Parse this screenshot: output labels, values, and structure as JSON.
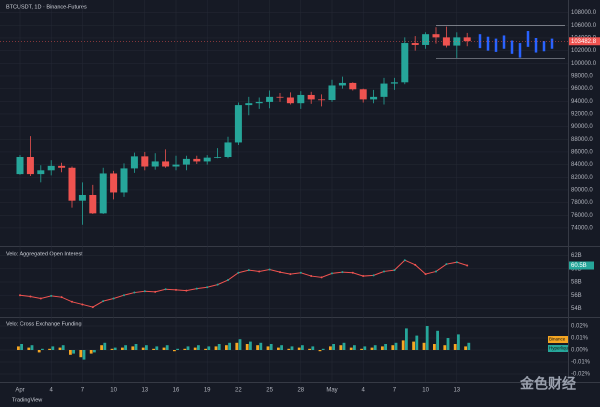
{
  "chart_data": [
    {
      "type": "candlestick",
      "title": "BTCUSDT, 1D · Binance-Futures",
      "categories": [
        "Apr",
        null,
        null,
        "4",
        null,
        null,
        "7",
        null,
        null,
        "10",
        null,
        null,
        "13",
        null,
        null,
        "16",
        null,
        null,
        "19",
        null,
        null,
        "22",
        null,
        null,
        "25",
        null,
        null,
        "28",
        null,
        null,
        "May",
        null,
        null,
        "4",
        null,
        null,
        "7",
        null,
        null,
        "10",
        null,
        null,
        "13",
        null
      ],
      "open": [
        82500,
        85200,
        82500,
        83100,
        83800,
        83500,
        78300,
        79200,
        76300,
        82600,
        79600,
        83400,
        85300,
        83700,
        84500,
        83700,
        84000,
        84900,
        84500,
        85100,
        85200,
        87500,
        93400,
        93700,
        93900,
        94700,
        94600,
        93700,
        95000,
        94300,
        94200,
        96500,
        96900,
        95900,
        94300,
        94700,
        96800,
        97000,
        103200,
        102900,
        104600,
        104100,
        102800,
        104100
      ],
      "high": [
        85500,
        88500,
        83900,
        84700,
        84300,
        83700,
        81200,
        80800,
        83500,
        83000,
        84200,
        85900,
        86000,
        85800,
        86400,
        85400,
        85400,
        85400,
        85500,
        86600,
        88400,
        93800,
        94700,
        94600,
        95700,
        95300,
        95400,
        95600,
        95500,
        95100,
        97400,
        97900,
        97000,
        96000,
        95800,
        97700,
        97700,
        104100,
        104300,
        104900,
        105700,
        105800,
        104900,
        104800
      ],
      "low": [
        82400,
        82200,
        81200,
        82300,
        82800,
        77200,
        74500,
        76200,
        76200,
        78500,
        78900,
        82700,
        83100,
        83200,
        83500,
        83100,
        83100,
        84100,
        84000,
        85000,
        85000,
        87100,
        91800,
        92800,
        92900,
        93900,
        93500,
        92800,
        93600,
        93200,
        93900,
        96000,
        95700,
        93800,
        93700,
        93500,
        95800,
        96700,
        102000,
        102300,
        103100,
        102500,
        100800,
        102700
      ],
      "close": [
        85200,
        82500,
        83100,
        83800,
        83500,
        78300,
        79200,
        76300,
        82600,
        79600,
        83400,
        85300,
        83700,
        84500,
        83700,
        84000,
        84900,
        84500,
        85100,
        85200,
        87500,
        93400,
        93700,
        93900,
        94700,
        94600,
        93700,
        95000,
        94300,
        94200,
        96500,
        96900,
        95900,
        94300,
        94700,
        96800,
        97000,
        103200,
        102900,
        104600,
        104100,
        102800,
        104100,
        103500
      ],
      "up_color": "#26a69a",
      "down_color": "#ef5350",
      "projection": {
        "color": "#2962ff",
        "high": [
          104600,
          104200,
          103900,
          104400,
          103600,
          103200,
          105100,
          104000,
          103500,
          103900
        ],
        "low": [
          102400,
          102000,
          101800,
          102300,
          101500,
          100900,
          102600,
          101700,
          101900,
          102300
        ]
      },
      "range_lines": [
        100800,
        106000
      ],
      "last_price": {
        "value": 103482.8,
        "label": "103482.8"
      },
      "ylim": [
        71300,
        110000
      ],
      "yticks": [
        {
          "value": 74000,
          "label": "74000.0"
        },
        {
          "value": 76000,
          "label": "76000.0"
        },
        {
          "value": 78000,
          "label": "78000.0"
        },
        {
          "value": 80000,
          "label": "80000.0"
        },
        {
          "value": 82000,
          "label": "82000.0"
        },
        {
          "value": 84000,
          "label": "84000.0"
        },
        {
          "value": 86000,
          "label": "86000.0"
        },
        {
          "value": 88000,
          "label": "88000.0"
        },
        {
          "value": 90000,
          "label": "90000.0"
        },
        {
          "value": 92000,
          "label": "92000.0"
        },
        {
          "value": 94000,
          "label": "94000.0"
        },
        {
          "value": 96000,
          "label": "96000.0"
        },
        {
          "value": 98000,
          "label": "98000.0"
        },
        {
          "value": 100000,
          "label": "100000.0"
        },
        {
          "value": 102000,
          "label": "102000.0"
        },
        {
          "value": 104000,
          "label": "104000.0"
        },
        {
          "value": 106000,
          "label": "106000.0"
        },
        {
          "value": 108000,
          "label": "108000.0"
        }
      ]
    },
    {
      "type": "line",
      "title": "Velo: Aggregated Open Interest",
      "color": "#ef5350",
      "values": [
        56.0,
        55.8,
        55.5,
        55.9,
        55.7,
        55.0,
        54.6,
        54.2,
        55.1,
        55.5,
        56.0,
        56.4,
        56.6,
        56.5,
        56.9,
        56.8,
        56.7,
        57.0,
        57.2,
        57.6,
        58.3,
        59.4,
        59.8,
        59.6,
        59.9,
        59.5,
        59.2,
        59.4,
        58.9,
        58.7,
        59.3,
        59.5,
        59.4,
        58.9,
        59.0,
        59.6,
        59.8,
        61.3,
        60.6,
        59.2,
        59.6,
        60.7,
        61.0,
        60.5
      ],
      "last_label": "60.5B",
      "ylim": [
        53,
        63
      ],
      "yticks": [
        {
          "value": 54,
          "label": "54B"
        },
        {
          "value": 56,
          "label": "56B"
        },
        {
          "value": 58,
          "label": "58B"
        },
        {
          "value": 60,
          "label": "60B"
        },
        {
          "value": 62,
          "label": "62B"
        }
      ]
    },
    {
      "type": "bar",
      "title": "Velo: Cross Exchange Funding",
      "series": [
        {
          "name": "Binance",
          "color": "#f5a623",
          "values": [
            0.003,
            0.002,
            -0.002,
            0.001,
            0.002,
            -0.004,
            -0.006,
            -0.003,
            0.004,
            0.001,
            0.002,
            0.003,
            0.002,
            0.001,
            0.002,
            -0.001,
            0.001,
            0.002,
            0.001,
            0.003,
            0.004,
            0.006,
            0.005,
            0.004,
            0.003,
            0.002,
            0.001,
            0.002,
            0.001,
            -0.001,
            0.003,
            0.004,
            0.002,
            0.001,
            0.002,
            0.003,
            0.004,
            0.008,
            0.007,
            0.006,
            0.005,
            0.004,
            0.005,
            0.003
          ]
        },
        {
          "name": "Hyperliquid",
          "color": "#26a69a",
          "values": [
            0.005,
            0.004,
            0.001,
            0.003,
            0.004,
            -0.003,
            -0.008,
            -0.002,
            0.006,
            0.002,
            0.004,
            0.005,
            0.004,
            0.003,
            0.004,
            0.001,
            0.003,
            0.004,
            0.003,
            0.005,
            0.006,
            0.009,
            0.007,
            0.006,
            0.005,
            0.004,
            0.003,
            0.004,
            0.003,
            0.001,
            0.005,
            0.006,
            0.004,
            0.003,
            0.004,
            0.005,
            0.006,
            0.018,
            0.012,
            0.02,
            0.016,
            0.01,
            0.013,
            0.006
          ]
        }
      ],
      "ylim": [
        -0.025,
        0.025
      ],
      "yticks": [
        {
          "value": -0.02,
          "label": "-0.02%"
        },
        {
          "value": -0.01,
          "label": "-0.01%"
        },
        {
          "value": 0,
          "label": "0.00%"
        },
        {
          "value": 0.01,
          "label": "0.01%"
        },
        {
          "value": 0.02,
          "label": "0.02%"
        }
      ]
    }
  ],
  "footer": {
    "logo": "TradingView",
    "watermark": "金色财经"
  }
}
